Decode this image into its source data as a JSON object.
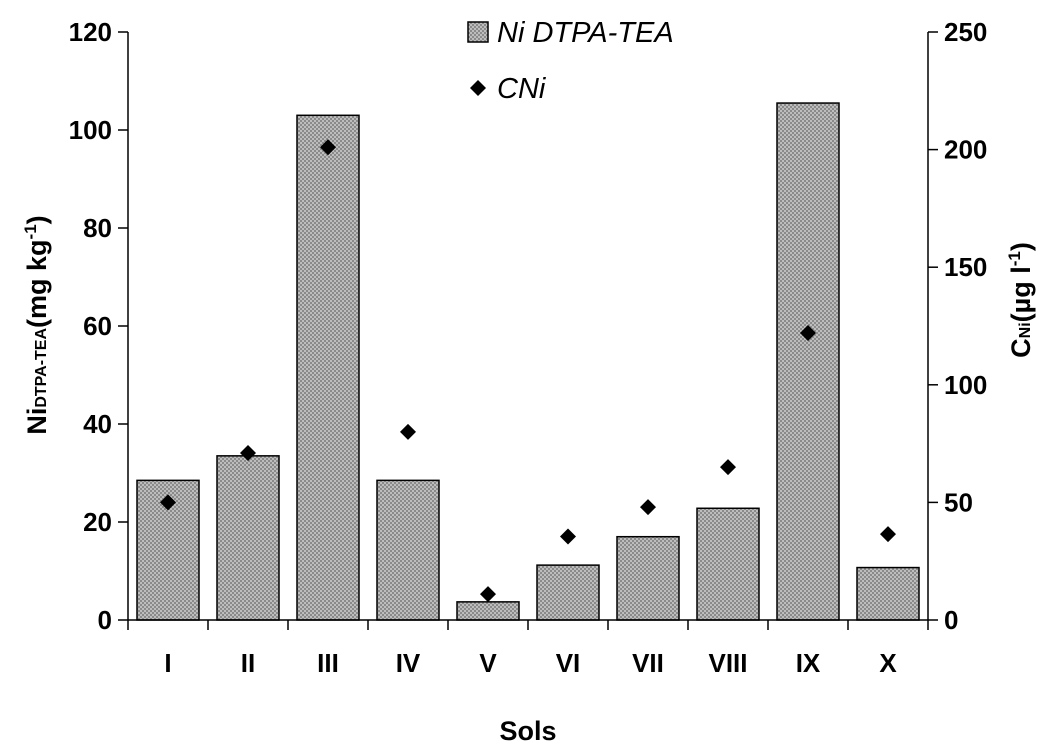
{
  "chart_data": {
    "type": "bar",
    "categories": [
      "I",
      "II",
      "III",
      "IV",
      "V",
      "VI",
      "VII",
      "VIII",
      "IX",
      "X"
    ],
    "series": [
      {
        "name": "Ni DTPA-TEA",
        "kind": "bar",
        "axis": "left",
        "values": [
          28.5,
          33.5,
          103,
          28.5,
          3.7,
          11.2,
          17,
          22.8,
          105.5,
          10.7
        ]
      },
      {
        "name": "CNi",
        "kind": "scatter",
        "marker": "diamond",
        "axis": "right",
        "values": [
          50,
          71,
          201,
          80,
          11,
          35.5,
          48,
          65,
          122,
          36.5
        ]
      }
    ],
    "xlabel": "Sols",
    "ylabel_left": {
      "main": "Ni",
      "sub": "DTPA-TEA",
      "rest": "(mg kg",
      "sup": "-1",
      "close": ")"
    },
    "ylabel_right": {
      "main": "C",
      "sub": "Ni",
      "rest": "(µg l",
      "sup": "-1",
      "close": ")"
    },
    "ylim_left": [
      0,
      120
    ],
    "yticks_left": [
      0,
      20,
      40,
      60,
      80,
      100,
      120
    ],
    "ylim_right": [
      0,
      250
    ],
    "yticks_right": [
      0,
      50,
      100,
      150,
      200,
      250
    ],
    "grid": false,
    "legend_position": "top-center",
    "colors": {
      "bar_fill": "#a6a6a6",
      "bar_stroke": "#000000",
      "marker": "#000000"
    }
  }
}
